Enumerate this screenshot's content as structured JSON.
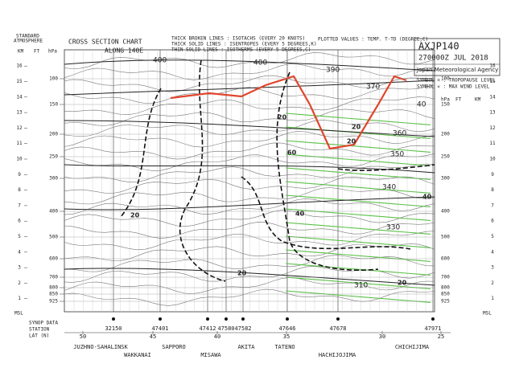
{
  "header": {
    "title": "CROSS SECTION CHART",
    "subtitle": "ALONG 140E",
    "legend": [
      "THICK BROKEN LINES : ISOTACHS (EVERY 20 KNOTS)",
      "THICK SOLID LINES : ISENTROPES (EVERY 5 DEGREES,K)",
      "THIN SOLID LINES : ISOTHERMS (EVERY 5 DEGREES,C)"
    ],
    "plotted": "PLOTTED VALUES : TEMP. T-TD (DEGREE,C)",
    "code": "AXJP140",
    "time": "270000Z JUL 2018",
    "agency": "Japan Meteorological Agency",
    "symbols": [
      "SYMBOL ✡ : TROPOPAUSE LEVEL",
      "SYMBOL ✕ : MAX WIND LEVEL"
    ]
  },
  "left_axis": {
    "title": [
      "STANDARD",
      "ATMOSPHERE"
    ],
    "units": [
      "KM",
      "FT",
      "hPa"
    ],
    "km_ticks": [
      1,
      2,
      3,
      4,
      5,
      6,
      7,
      8,
      9,
      10,
      11,
      12,
      13,
      14,
      15,
      16
    ],
    "hpa_ticks": [
      "100",
      "150",
      "200",
      "250",
      "300",
      "400",
      "500",
      "600",
      "700",
      "800",
      "850",
      "925"
    ],
    "msl": "MSL"
  },
  "right_axis": {
    "units": [
      "hPa",
      "FT",
      "KM"
    ],
    "msl": "MSL"
  },
  "isentropes": [
    "400",
    "400",
    "390",
    "370",
    "360",
    "350",
    "340",
    "330",
    "310",
    "40"
  ],
  "isotachs": [
    "20",
    "20",
    "20",
    "40",
    "60",
    "20",
    "20",
    "20",
    "40"
  ],
  "bottom": {
    "station_label": "STATION",
    "synop_label": "SYNOP DATA",
    "lat_label": "LAT (N)",
    "lat_ticks": [
      50,
      45,
      40,
      35,
      30,
      25
    ],
    "stations": [
      {
        "id": "32150",
        "name": "JUZHNO-SAHALINSK"
      },
      {
        "id": "47401",
        "name": "WAKKANAI"
      },
      {
        "id": "47412",
        "name": "SAPPORO"
      },
      {
        "id": "47580",
        "name": "MISAWA"
      },
      {
        "id": "47582",
        "name": "AKITA"
      },
      {
        "id": "47646",
        "name": "TATENO"
      },
      {
        "id": "47678",
        "name": "HACHIJOJIMA"
      },
      {
        "id": "47971",
        "name": "CHICHIJIMA"
      }
    ]
  }
}
